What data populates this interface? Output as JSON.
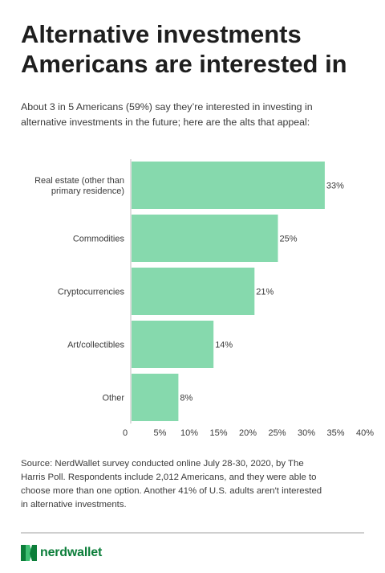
{
  "title_lines": [
    "Alternative investments",
    "Americans are interested in"
  ],
  "subtitle_lines": [
    "About 3 in 5 Americans (59%) say they’re interested in investing in",
    "alternative investments in the future; here are the alts that appeal:"
  ],
  "chart_data": {
    "type": "bar",
    "orientation": "horizontal",
    "categories": [
      [
        "Real estate (other than",
        "primary residence)"
      ],
      [
        "Commodities"
      ],
      [
        "Cryptocurrencies"
      ],
      [
        "Art/collectibles"
      ],
      [
        "Other"
      ]
    ],
    "values": [
      33,
      25,
      21,
      14,
      8
    ],
    "value_labels": [
      "33%",
      "25%",
      "21%",
      "14%",
      "8%"
    ],
    "xlim": [
      0,
      40
    ],
    "x_ticks": [
      0,
      5,
      10,
      15,
      20,
      25,
      30,
      35,
      40
    ],
    "x_tick_labels": [
      "0",
      "5%",
      "10%",
      "15%",
      "20%",
      "25%",
      "30%",
      "35%",
      "40%"
    ],
    "grid": false,
    "bar_color": "#86d9ad"
  },
  "source_lines": [
    "Source: NerdWallet survey conducted online July 28-30, 2020, by The",
    "Harris Poll. Respondents include 2,012 Americans, and they were able to",
    "choose more than one option. Another 41% of U.S. adults aren't interested",
    "in alternative investments."
  ],
  "brand": {
    "name": "nerdwallet",
    "logo_icon": "nerdwallet-logo-icon",
    "color": "#0c7e3a"
  }
}
